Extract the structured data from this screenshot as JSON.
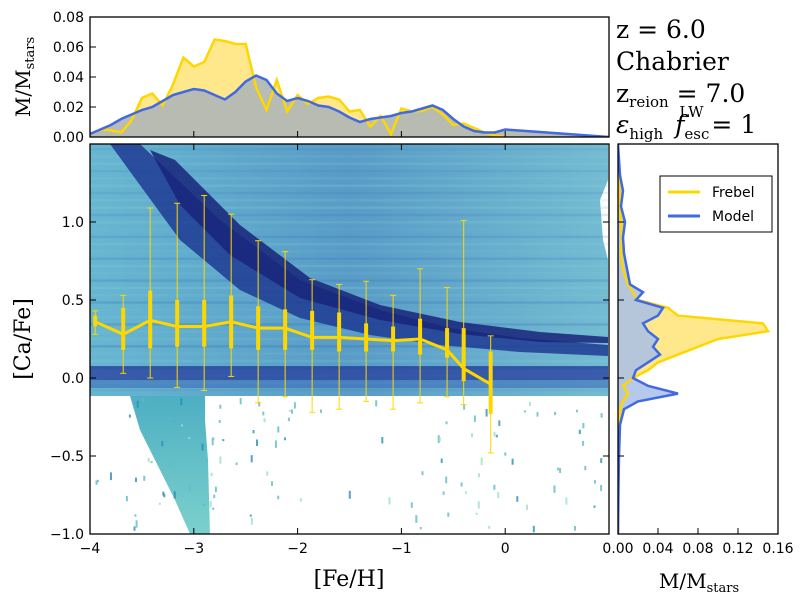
{
  "colors": {
    "frebel": "#ffd700",
    "frebel_fill": "#ffe680",
    "model": "#4169e1",
    "model_fill": "#a9bfe8",
    "overlap_fill": "#b3b8b3",
    "density_low": "#a8dcc8",
    "density_mid": "#4aa3c9",
    "density_high": "#1a2a80"
  },
  "annotations": {
    "redshift": "z = 6.0",
    "imf": "Chabrier",
    "reion_sym": "z",
    "reion_sub": "reion",
    "reion_val": " = 7.0",
    "eps_sym": "ε",
    "eps_sub": "high",
    "fesc_sym": "f",
    "fesc_sub": "esc",
    "fesc_sup": "LW",
    "fesc_val": " = 1"
  },
  "chart_data": [
    {
      "id": "main",
      "type": "scatter",
      "description_series": "2D density map of Model stars with Frebel binned median and error bars",
      "xlabel": "[Fe/H]",
      "ylabel": "[Ca/Fe]",
      "xlim": [
        -4.0,
        1.0
      ],
      "ylim": [
        -1.0,
        1.5
      ],
      "xticks": [
        -4,
        -3,
        -2,
        -1,
        0
      ],
      "yticks": [
        -1.0,
        -0.5,
        0.0,
        0.5,
        1.0
      ],
      "tick_labels_x": [
        "−4",
        "−3",
        "−2",
        "−1",
        "0"
      ],
      "tick_labels_y": [
        "−1.0",
        "−0.5",
        "0.0",
        "0.5",
        "1.0"
      ],
      "frebel_binned": {
        "x": [
          -3.95,
          -3.68,
          -3.42,
          -3.16,
          -2.9,
          -2.64,
          -2.38,
          -2.12,
          -1.86,
          -1.6,
          -1.34,
          -1.08,
          -0.82,
          -0.56,
          -0.4,
          -0.14
        ],
        "median": [
          0.36,
          0.28,
          0.37,
          0.33,
          0.33,
          0.36,
          0.32,
          0.32,
          0.26,
          0.26,
          0.25,
          0.24,
          0.25,
          0.18,
          0.06,
          -0.04
        ],
        "q_low": [
          0.33,
          0.18,
          0.19,
          0.2,
          0.2,
          0.19,
          0.18,
          0.18,
          0.18,
          0.17,
          0.17,
          0.17,
          0.15,
          0.13,
          -0.02,
          -0.23
        ],
        "q_high": [
          0.4,
          0.45,
          0.56,
          0.5,
          0.5,
          0.53,
          0.46,
          0.44,
          0.43,
          0.42,
          0.35,
          0.33,
          0.38,
          0.32,
          0.32,
          0.17
        ],
        "err_low": [
          0.28,
          0.03,
          0.0,
          -0.06,
          -0.08,
          0.01,
          -0.16,
          -0.12,
          -0.22,
          -0.2,
          -0.15,
          -0.2,
          -0.16,
          -0.12,
          -0.17,
          -0.48
        ],
        "err_high": [
          0.43,
          0.53,
          1.09,
          1.12,
          1.17,
          1.05,
          0.88,
          0.81,
          0.63,
          0.6,
          0.62,
          0.53,
          0.7,
          0.58,
          1.01,
          0.27
        ]
      }
    },
    {
      "id": "top",
      "type": "area",
      "ylabel_main": "M/M",
      "ylabel_sub": "stars",
      "xlim": [
        -4.0,
        1.0
      ],
      "ylim": [
        0.0,
        0.08
      ],
      "yticks": [
        0.0,
        0.02,
        0.04,
        0.06,
        0.08
      ],
      "tick_labels_y": [
        "0.00",
        "0.02",
        "0.04",
        "0.06",
        "0.08"
      ],
      "series": [
        {
          "name": "Frebel",
          "x": [
            -4.0,
            -3.9,
            -3.8,
            -3.7,
            -3.6,
            -3.5,
            -3.4,
            -3.3,
            -3.2,
            -3.1,
            -3.0,
            -2.9,
            -2.8,
            -2.7,
            -2.6,
            -2.5,
            -2.4,
            -2.3,
            -2.2,
            -2.1,
            -2.0,
            -1.9,
            -1.8,
            -1.7,
            -1.6,
            -1.5,
            -1.4,
            -1.3,
            -1.2,
            -1.1,
            -1.0,
            -0.9,
            -0.8,
            -0.7,
            -0.6,
            -0.5,
            -0.4,
            -0.3,
            -0.2,
            -0.1,
            0.0
          ],
          "values": [
            0.002,
            0.005,
            0.0045,
            0.003,
            0.011,
            0.026,
            0.029,
            0.021,
            0.035,
            0.053,
            0.047,
            0.05,
            0.065,
            0.064,
            0.062,
            0.062,
            0.033,
            0.018,
            0.038,
            0.017,
            0.028,
            0.022,
            0.026,
            0.027,
            0.025,
            0.017,
            0.018,
            0.007,
            0.014,
            0.002,
            0.019,
            0.017,
            0.0175,
            0.02,
            0.015,
            0.008,
            0.009,
            0.006,
            0.003,
            0.001,
            0.0
          ]
        },
        {
          "name": "Model",
          "x": [
            -4.0,
            -3.9,
            -3.8,
            -3.7,
            -3.6,
            -3.5,
            -3.4,
            -3.3,
            -3.2,
            -3.1,
            -3.0,
            -2.9,
            -2.8,
            -2.7,
            -2.6,
            -2.5,
            -2.4,
            -2.3,
            -2.2,
            -2.1,
            -2.0,
            -1.9,
            -1.8,
            -1.7,
            -1.6,
            -1.5,
            -1.4,
            -1.3,
            -1.2,
            -1.1,
            -1.0,
            -0.9,
            -0.8,
            -0.7,
            -0.6,
            -0.5,
            -0.4,
            -0.3,
            -0.2,
            -0.1,
            0.0,
            0.2,
            0.4,
            0.6,
            0.8,
            1.0
          ],
          "values": [
            0.002,
            0.005,
            0.008,
            0.012,
            0.015,
            0.018,
            0.02,
            0.024,
            0.028,
            0.03,
            0.032,
            0.031,
            0.028,
            0.025,
            0.03,
            0.037,
            0.041,
            0.038,
            0.029,
            0.024,
            0.026,
            0.024,
            0.021,
            0.02,
            0.017,
            0.013,
            0.01,
            0.012,
            0.013,
            0.014,
            0.016,
            0.017,
            0.019,
            0.021,
            0.018,
            0.012,
            0.007,
            0.004,
            0.003,
            0.003,
            0.005,
            0.004,
            0.003,
            0.002,
            0.001,
            0.0
          ]
        }
      ]
    },
    {
      "id": "right",
      "type": "area",
      "orientation": "horizontal",
      "xlabel_main": "M/M",
      "xlabel_sub": "stars",
      "xlim": [
        0.0,
        0.16
      ],
      "ylim": [
        -1.0,
        1.5
      ],
      "xticks": [
        0.0,
        0.04,
        0.08,
        0.12,
        0.16
      ],
      "tick_labels_x": [
        "0.00",
        "0.04",
        "0.08",
        "0.12",
        "0.16"
      ],
      "legend": {
        "placement": "top-right",
        "entries": [
          "Frebel",
          "Model"
        ]
      },
      "series": [
        {
          "name": "Frebel",
          "y": [
            1.5,
            1.3,
            1.1,
            1.0,
            0.9,
            0.8,
            0.7,
            0.6,
            0.55,
            0.5,
            0.45,
            0.4,
            0.35,
            0.3,
            0.25,
            0.2,
            0.15,
            0.1,
            0.05,
            0.0,
            -0.05,
            -0.1,
            -0.15,
            -0.2,
            -0.3,
            -0.4,
            -0.5,
            -0.6,
            -1.0
          ],
          "values": [
            0.0,
            0.001,
            0.002,
            0.003,
            0.004,
            0.003,
            0.005,
            0.01,
            0.015,
            0.02,
            0.05,
            0.06,
            0.145,
            0.15,
            0.1,
            0.08,
            0.06,
            0.04,
            0.03,
            0.015,
            0.005,
            0.01,
            0.005,
            0.002,
            0.001,
            0.001,
            0.0005,
            0.0002,
            0.0
          ]
        },
        {
          "name": "Model",
          "y": [
            1.5,
            1.3,
            1.2,
            1.1,
            1.0,
            0.9,
            0.8,
            0.7,
            0.6,
            0.55,
            0.5,
            0.45,
            0.4,
            0.35,
            0.3,
            0.25,
            0.2,
            0.15,
            0.1,
            0.05,
            0.0,
            -0.05,
            -0.1,
            -0.15,
            -0.2,
            -0.3,
            -0.5,
            -0.7,
            -1.0
          ],
          "values": [
            0.0,
            0.002,
            0.005,
            0.003,
            0.007,
            0.005,
            0.006,
            0.009,
            0.012,
            0.025,
            0.018,
            0.045,
            0.04,
            0.025,
            0.03,
            0.04,
            0.035,
            0.042,
            0.03,
            0.018,
            0.015,
            0.03,
            0.06,
            0.02,
            0.006,
            0.002,
            0.001,
            0.0005,
            0.0
          ]
        }
      ]
    }
  ]
}
